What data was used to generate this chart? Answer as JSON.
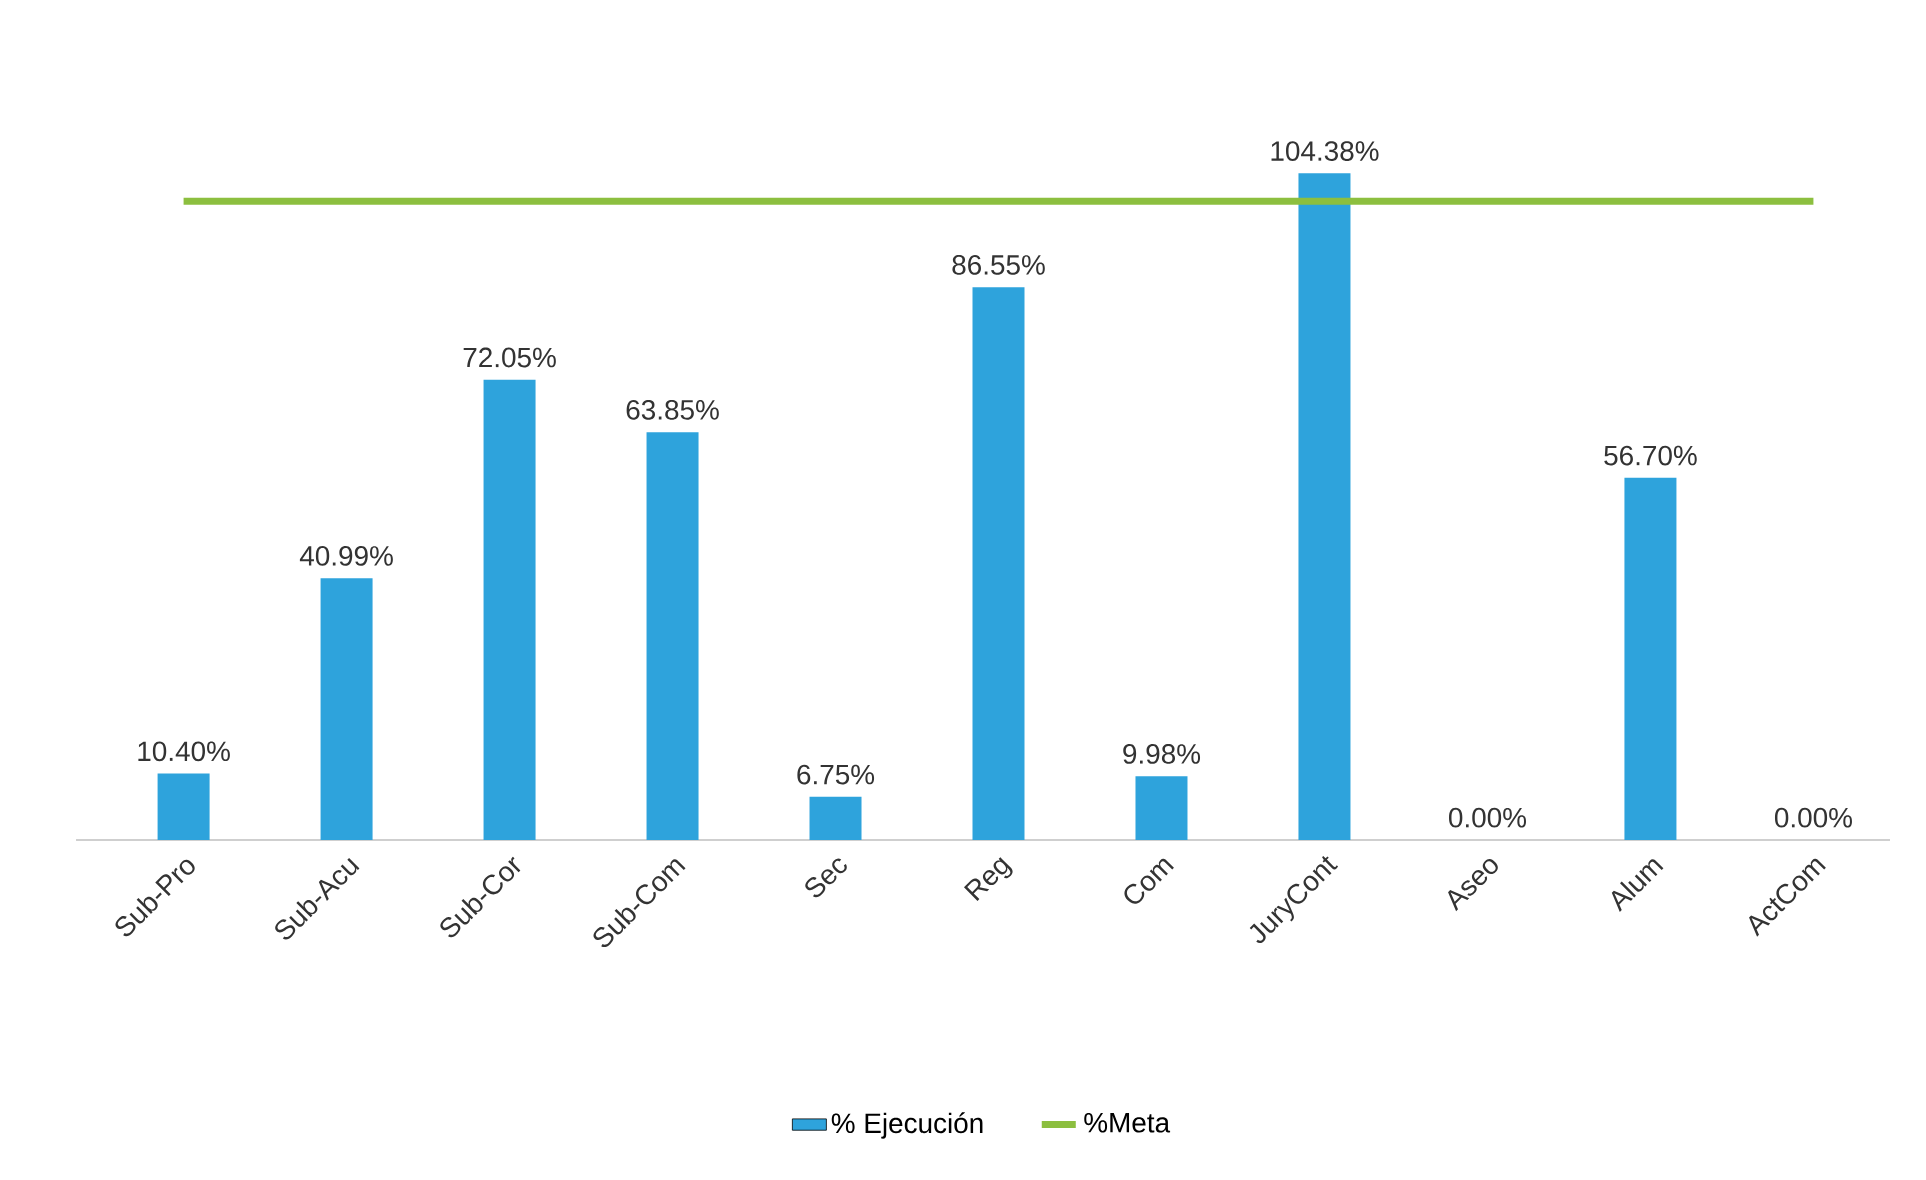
{
  "chart_data": {
    "type": "bar",
    "categories": [
      "Sub-Pro",
      "Sub-Acu",
      "Sub-Cor",
      "Sub-Com",
      "Sec",
      "Reg",
      "Com",
      "JuryCont",
      "Aseo",
      "Alum",
      "ActCom"
    ],
    "series": [
      {
        "name": "% Ejecución",
        "color": "#2ea3dc",
        "values": [
          10.4,
          40.99,
          72.05,
          63.85,
          6.75,
          86.55,
          9.98,
          104.38,
          0.0,
          56.7,
          0.0
        ],
        "value_labels": [
          "10.40%",
          "40.99%",
          "72.05%",
          "63.85%",
          "6.75%",
          "86.55%",
          "9.98%",
          "104.38%",
          "0.00%",
          "56.70%",
          "0.00%"
        ]
      },
      {
        "name": "%Meta",
        "type": "line",
        "color": "#8cbf3f",
        "values": [
          100,
          100,
          100,
          100,
          100,
          100,
          100,
          100,
          100,
          100,
          100
        ]
      }
    ],
    "legend": "bottom"
  }
}
